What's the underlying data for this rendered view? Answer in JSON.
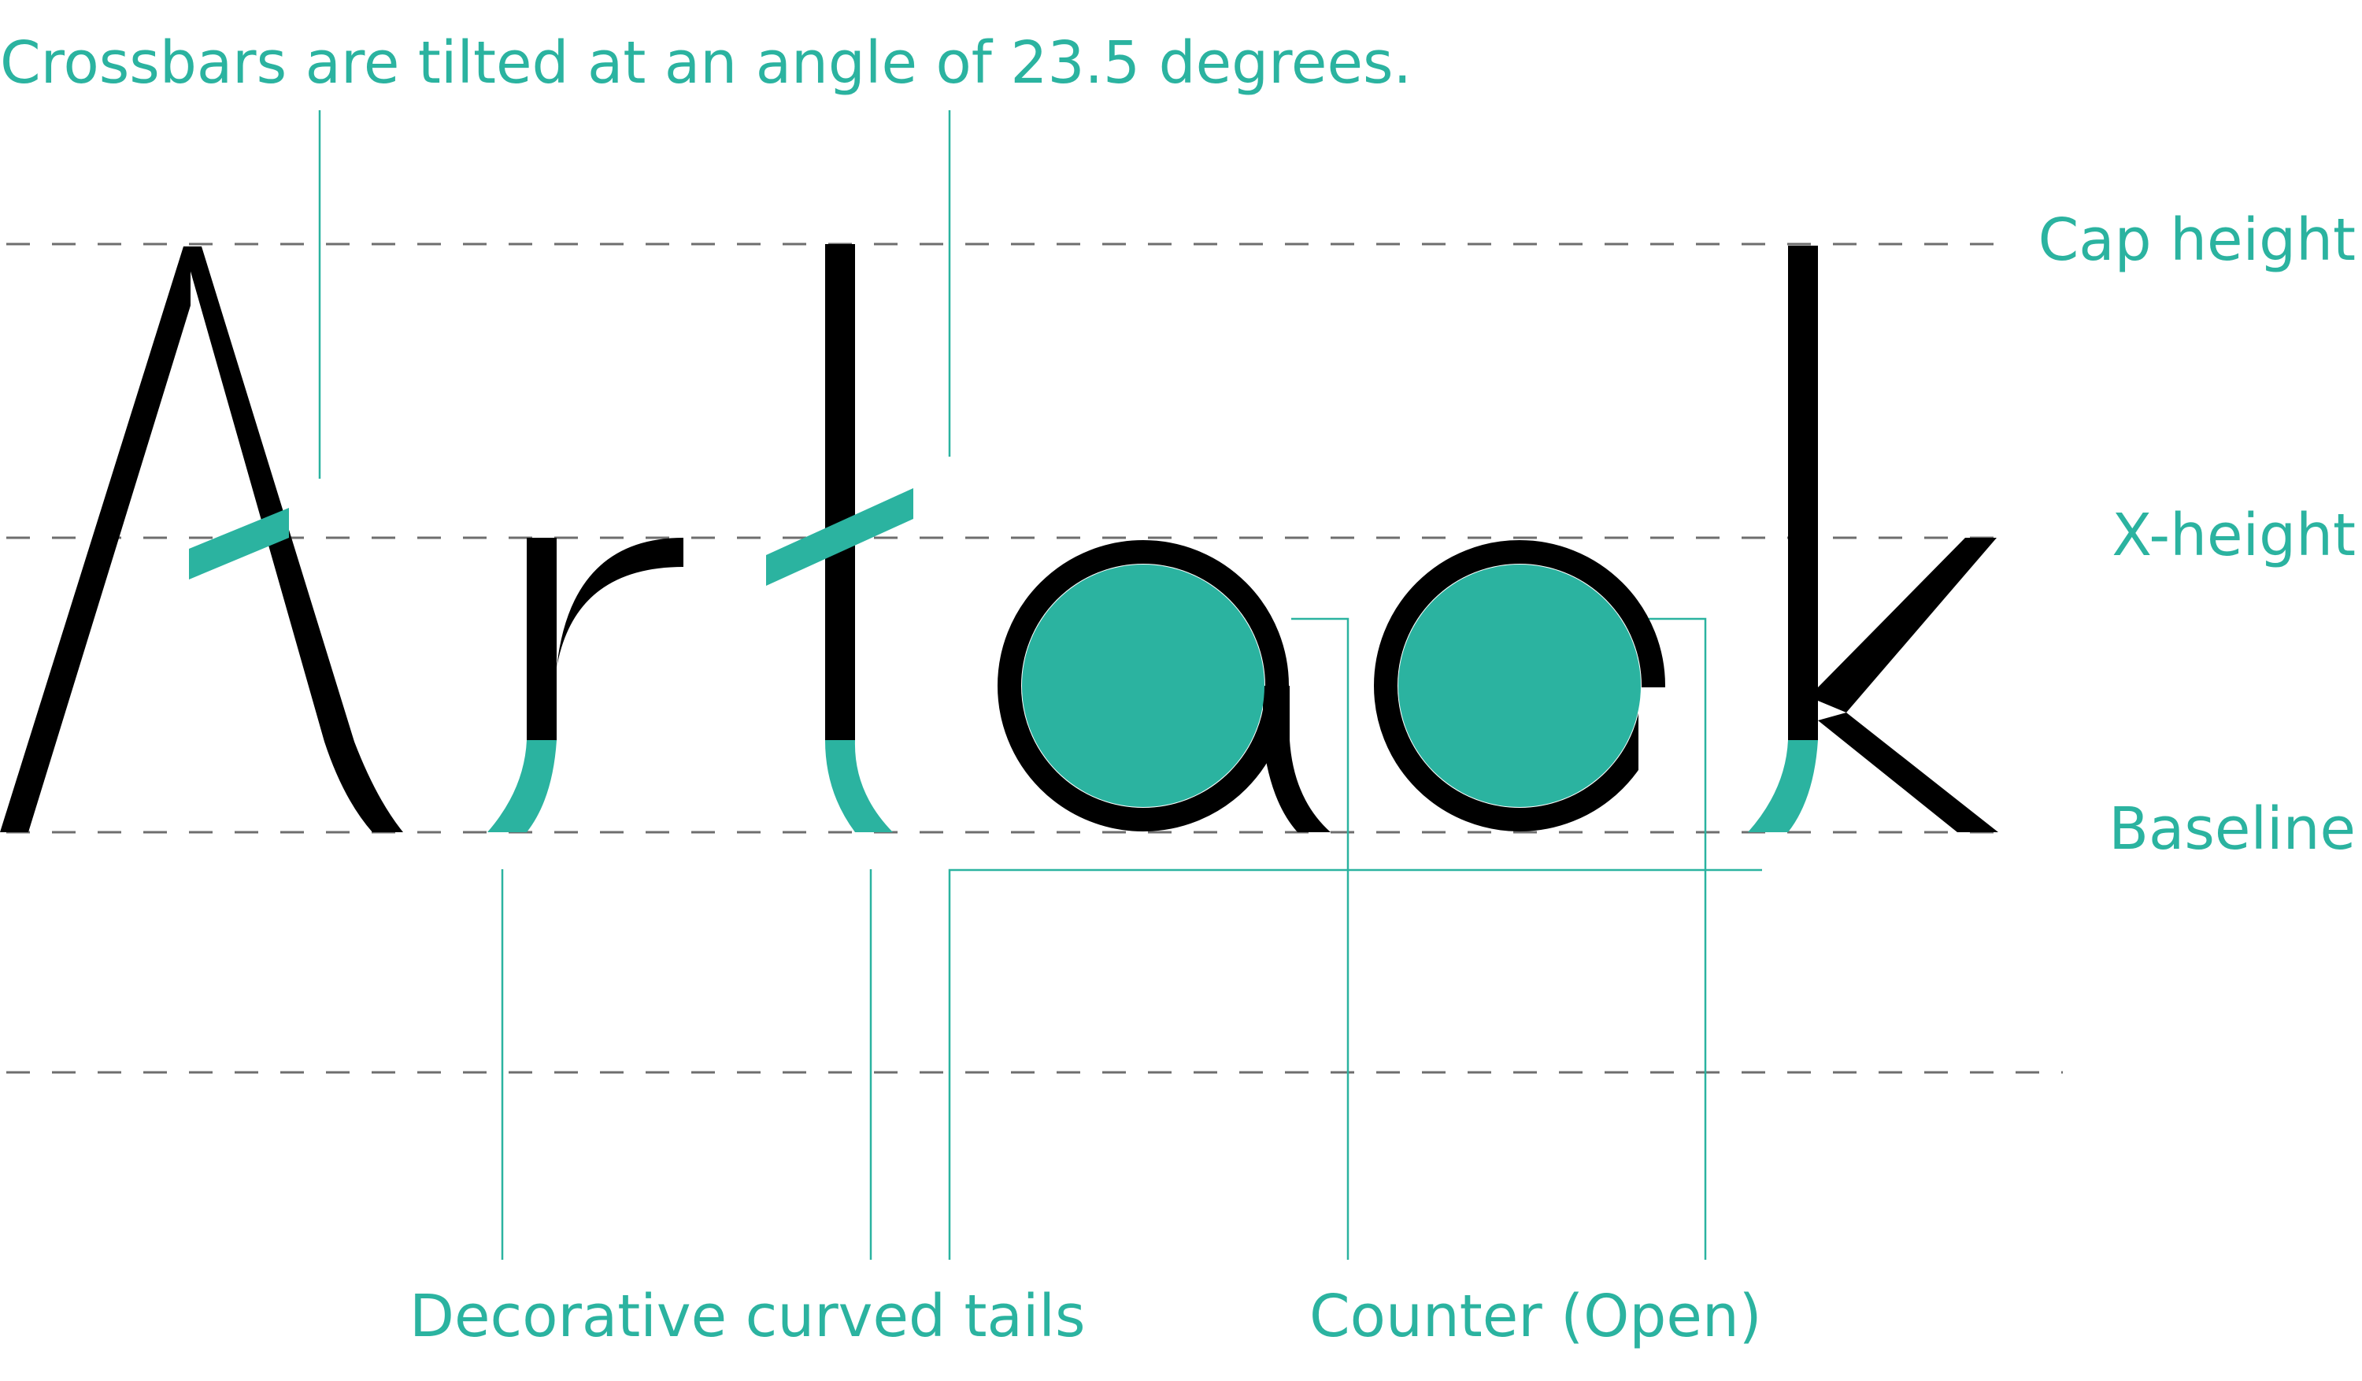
{
  "annotations": {
    "crossbars": "Crossbars  are tilted at an angle of 23.5 degrees.",
    "tails": "Decorative curved tails",
    "counter": "Counter (Open)"
  },
  "guides": {
    "cap_height": "Cap height",
    "x_height": "X-height",
    "baseline": "Baseline"
  },
  "word": "Artaok",
  "colors": {
    "accent": "#2bb3a0",
    "ink": "#000000",
    "guide": "#6e6e6e"
  }
}
